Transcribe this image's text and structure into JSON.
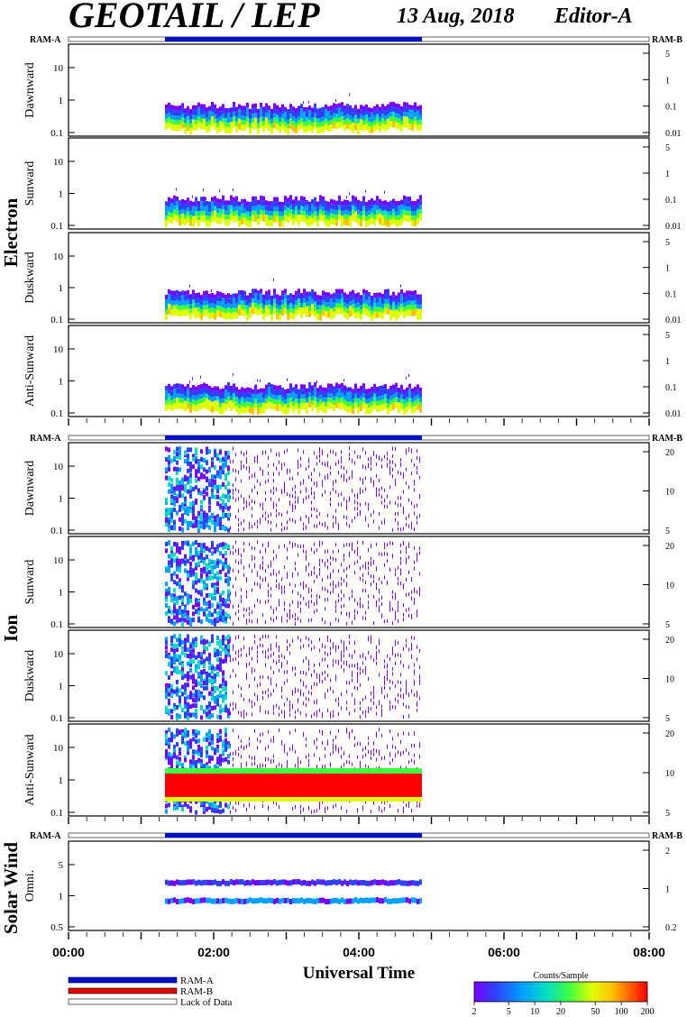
{
  "header": {
    "title": "GEOTAIL / LEP",
    "date": "13 Aug, 2018",
    "editor": "Editor-A"
  },
  "groups": {
    "electron": "Electron",
    "ion": "Ion",
    "solar_wind": "Solar Wind"
  },
  "ram_labels": {
    "left": "RAM-A",
    "right": "RAM-B"
  },
  "x_axis": {
    "label": "Universal Time",
    "ticks": [
      "00:00",
      "02:00",
      "04:00",
      "06:00",
      "08:00"
    ]
  },
  "legend": {
    "items": [
      "RAM-A",
      "RAM-B",
      "Lack of Data"
    ],
    "colors": [
      "#0010c8",
      "#e00000",
      "#ffffff"
    ]
  },
  "colorbar": {
    "title": "Counts/Sample",
    "ticks": [
      "2",
      "5",
      "10",
      "20",
      "50",
      "100",
      "200"
    ]
  },
  "colors": {
    "ram_a": "#0010c8",
    "ram_b": "#e00000",
    "spectrogram": [
      "#ffffff",
      "#7a00ff",
      "#3040ff",
      "#00a0ff",
      "#00e0c0",
      "#40ff40",
      "#e0ff00",
      "#ffc000",
      "#ff6000",
      "#ff0000"
    ]
  },
  "chart_data": [
    {
      "type": "heatmap",
      "group": "Electron",
      "ylabel": "Dawnward",
      "left_ticks": [
        "10",
        "1",
        "0.1"
      ],
      "right_ticks": [
        "5",
        "1",
        "0.1",
        "0.01"
      ]
    },
    {
      "type": "heatmap",
      "group": "Electron",
      "ylabel": "Sunward",
      "left_ticks": [
        "10",
        "1",
        "0.1"
      ],
      "right_ticks": [
        "5",
        "1",
        "0.1",
        "0.01"
      ]
    },
    {
      "type": "heatmap",
      "group": "Electron",
      "ylabel": "Duskward",
      "left_ticks": [
        "10",
        "1",
        "0.1"
      ],
      "right_ticks": [
        "5",
        "1",
        "0.1",
        "0.01"
      ]
    },
    {
      "type": "heatmap",
      "group": "Electron",
      "ylabel": "Anti-Sunward",
      "left_ticks": [
        "10",
        "1",
        "0.1"
      ],
      "right_ticks": [
        "5",
        "1",
        "0.1",
        "0.01"
      ]
    },
    {
      "type": "heatmap",
      "group": "Ion",
      "ylabel": "Dawnward",
      "left_ticks": [
        "10",
        "1",
        "0.1"
      ],
      "right_ticks": [
        "20",
        "10",
        "5"
      ]
    },
    {
      "type": "heatmap",
      "group": "Ion",
      "ylabel": "Sunward",
      "left_ticks": [
        "10",
        "1",
        "0.1"
      ],
      "right_ticks": [
        "20",
        "10",
        "5"
      ]
    },
    {
      "type": "heatmap",
      "group": "Ion",
      "ylabel": "Duskward",
      "left_ticks": [
        "10",
        "1",
        "0.1"
      ],
      "right_ticks": [
        "20",
        "10",
        "5"
      ]
    },
    {
      "type": "heatmap",
      "group": "Ion",
      "ylabel": "Anti-Sunward",
      "left_ticks": [
        "10",
        "1",
        "0.1"
      ],
      "right_ticks": [
        "20",
        "10",
        "5"
      ]
    },
    {
      "type": "heatmap",
      "group": "Solar Wind",
      "ylabel": "Omni.",
      "left_ticks": [
        "5",
        "1",
        "0.5"
      ],
      "right_ticks": [
        "2",
        "1",
        "0.2"
      ]
    }
  ]
}
